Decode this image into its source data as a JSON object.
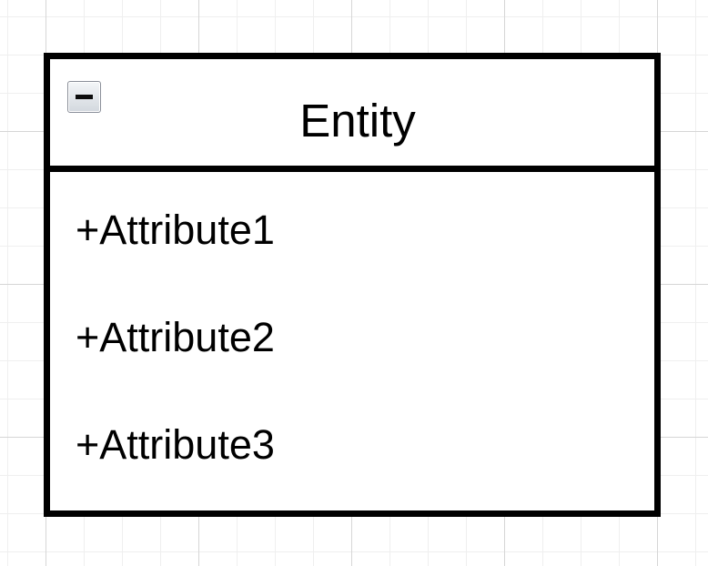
{
  "entity": {
    "title": "Entity",
    "collapse_icon": "minus-icon",
    "attributes": [
      "+Attribute1",
      "+Attribute2",
      "+Attribute3"
    ]
  }
}
